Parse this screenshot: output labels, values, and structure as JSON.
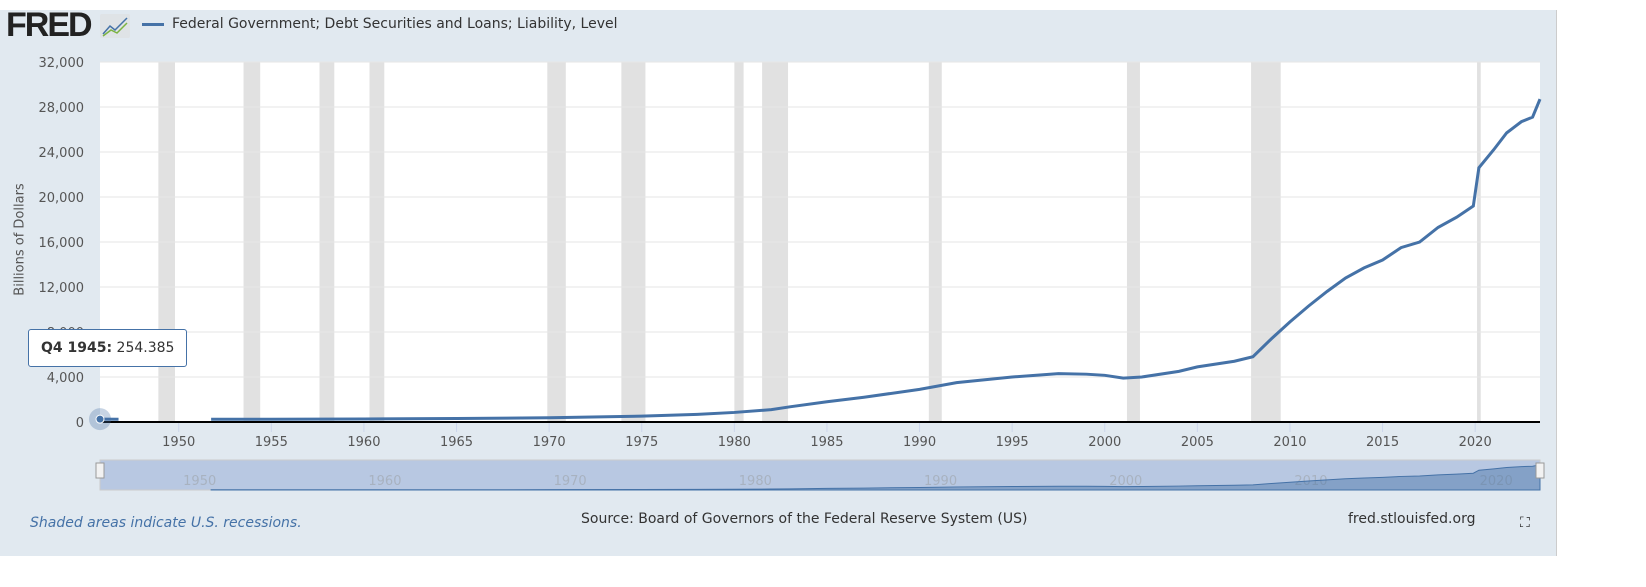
{
  "header": {
    "logo": "FRED",
    "legend": "Federal Government; Debt Securities and Loans; Liability, Level"
  },
  "tooltip": {
    "label": "Q4 1945:",
    "value": "254.385"
  },
  "footer": {
    "note": "Shaded areas indicate U.S. recessions.",
    "source": "Source: Board of Governors of the Federal Reserve System (US)",
    "site": "fred.stlouisfed.org"
  },
  "chart_data": {
    "type": "line",
    "title": "Federal Government; Debt Securities and Loans; Liability, Level",
    "ylabel": "Billions of Dollars",
    "xlabel": "",
    "ylim": [
      0,
      32000
    ],
    "xlim": [
      1945.75,
      2023.5
    ],
    "yticks": [
      "0",
      "4,000",
      "8,000",
      "12,000",
      "16,000",
      "20,000",
      "24,000",
      "28,000",
      "32,000"
    ],
    "xticks": [
      "1950",
      "1955",
      "1960",
      "1965",
      "1970",
      "1975",
      "1980",
      "1985",
      "1990",
      "1995",
      "2000",
      "2005",
      "2010",
      "2015",
      "2020"
    ],
    "navigator_ticks": [
      "1950",
      "1960",
      "1970",
      "1980",
      "1990",
      "2000",
      "2010",
      "2020"
    ],
    "color": "#4572a7",
    "segments": [
      [
        [
          1945.75,
          254
        ],
        [
          1946.75,
          250
        ]
      ],
      [
        [
          1951.75,
          240
        ],
        [
          1955,
          250
        ],
        [
          1960,
          270
        ],
        [
          1965,
          310
        ],
        [
          1970,
          380
        ],
        [
          1975,
          520
        ],
        [
          1978,
          680
        ],
        [
          1980,
          850
        ],
        [
          1982,
          1100
        ],
        [
          1983,
          1350
        ],
        [
          1985,
          1800
        ],
        [
          1987,
          2200
        ],
        [
          1990,
          2900
        ],
        [
          1992,
          3500
        ],
        [
          1995,
          4000
        ],
        [
          1997.5,
          4300
        ],
        [
          1999,
          4250
        ],
        [
          2000,
          4150
        ],
        [
          2001,
          3900
        ],
        [
          2002,
          4000
        ],
        [
          2004,
          4500
        ],
        [
          2005,
          4900
        ],
        [
          2007,
          5400
        ],
        [
          2008,
          5800
        ],
        [
          2009,
          7400
        ],
        [
          2010,
          8900
        ],
        [
          2011,
          10300
        ],
        [
          2012,
          11600
        ],
        [
          2013,
          12800
        ],
        [
          2014,
          13700
        ],
        [
          2015,
          14400
        ],
        [
          2016,
          15500
        ],
        [
          2017,
          16000
        ],
        [
          2018,
          17300
        ],
        [
          2019,
          18200
        ],
        [
          2019.9,
          19200
        ],
        [
          2020.2,
          22600
        ],
        [
          2021,
          24200
        ],
        [
          2021.7,
          25700
        ],
        [
          2022.5,
          26700
        ],
        [
          2023.1,
          27100
        ],
        [
          2023.5,
          28700
        ]
      ]
    ],
    "recessions": [
      [
        1948.9,
        1949.8
      ],
      [
        1953.5,
        1954.4
      ],
      [
        1957.6,
        1958.4
      ],
      [
        1960.3,
        1961.1
      ],
      [
        1969.9,
        1970.9
      ],
      [
        1973.9,
        1975.2
      ],
      [
        1980.0,
        1980.5
      ],
      [
        1981.5,
        1982.9
      ],
      [
        1990.5,
        1991.2
      ],
      [
        2001.2,
        2001.9
      ],
      [
        2007.9,
        2009.5
      ],
      [
        2020.1,
        2020.3
      ]
    ]
  }
}
